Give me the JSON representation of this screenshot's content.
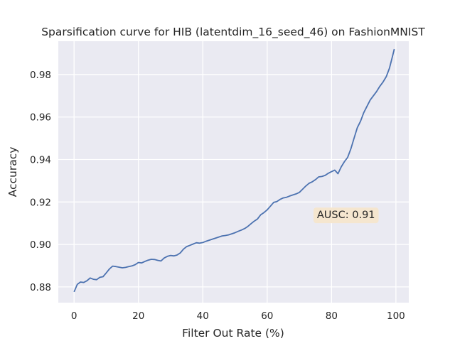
{
  "chart_data": {
    "type": "line",
    "title": "Sparsification curve for HIB (latentdim_16_seed_46) on FashionMNIST",
    "xlabel": "Filter Out Rate (%)",
    "ylabel": "Accuracy",
    "xlim": [
      -4.9,
      104
    ],
    "ylim": [
      0.8726,
      0.9957
    ],
    "xticks": [
      0,
      20,
      40,
      60,
      80,
      100
    ],
    "yticks": [
      0.88,
      0.9,
      0.92,
      0.94,
      0.96,
      0.98
    ],
    "xtick_labels": [
      "0",
      "20",
      "40",
      "60",
      "80",
      "100"
    ],
    "ytick_labels": [
      "0.88",
      "0.90",
      "0.92",
      "0.94",
      "0.96",
      "0.98"
    ],
    "grid": true,
    "annotation": {
      "text": "AUSC: 0.91",
      "x": 84.5,
      "y": 0.9137
    },
    "colors": {
      "line": "#4c72b0",
      "background": "#eaeaf2",
      "grid": "#ffffff",
      "annotation_box": "#f5e6cf"
    },
    "series": [
      {
        "x": [
          0,
          1,
          2,
          3,
          4,
          5,
          6,
          7,
          8,
          9,
          10,
          11,
          12,
          13,
          14,
          15,
          16,
          17,
          18,
          19,
          20,
          21,
          22,
          23,
          24,
          25,
          26,
          27,
          28,
          29,
          30,
          31,
          32,
          33,
          34,
          35,
          36,
          37,
          38,
          39,
          40,
          41,
          42,
          43,
          44,
          45,
          46,
          47,
          48,
          49,
          50,
          51,
          52,
          53,
          54,
          55,
          56,
          57,
          58,
          59,
          60,
          61,
          62,
          63,
          64,
          65,
          66,
          67,
          68,
          69,
          70,
          71,
          72,
          73,
          74,
          75,
          76,
          77,
          78,
          79,
          80,
          81,
          82,
          83,
          84,
          85,
          86,
          87,
          88,
          89,
          90,
          91,
          92,
          93,
          94,
          95,
          96,
          97,
          98,
          99,
          99.5
        ],
        "y": [
          0.8777,
          0.8812,
          0.8823,
          0.8821,
          0.8829,
          0.8842,
          0.8836,
          0.8834,
          0.8845,
          0.8848,
          0.8866,
          0.8885,
          0.8898,
          0.8896,
          0.8893,
          0.889,
          0.8892,
          0.8896,
          0.8899,
          0.8905,
          0.8915,
          0.8913,
          0.892,
          0.8926,
          0.893,
          0.8929,
          0.8925,
          0.8922,
          0.8936,
          0.8944,
          0.8948,
          0.8946,
          0.895,
          0.896,
          0.8978,
          0.899,
          0.8996,
          0.9002,
          0.9008,
          0.9006,
          0.9009,
          0.9015,
          0.902,
          0.9025,
          0.903,
          0.9035,
          0.904,
          0.9042,
          0.9045,
          0.905,
          0.9055,
          0.9062,
          0.9068,
          0.9075,
          0.9085,
          0.9098,
          0.911,
          0.912,
          0.914,
          0.915,
          0.9163,
          0.918,
          0.9198,
          0.9202,
          0.9212,
          0.9219,
          0.9222,
          0.9228,
          0.9233,
          0.9238,
          0.9245,
          0.926,
          0.9275,
          0.9288,
          0.9295,
          0.9305,
          0.9318,
          0.932,
          0.9325,
          0.9335,
          0.9343,
          0.935,
          0.9333,
          0.9365,
          0.939,
          0.941,
          0.945,
          0.95,
          0.955,
          0.958,
          0.962,
          0.965,
          0.968,
          0.97,
          0.972,
          0.9745,
          0.9765,
          0.979,
          0.983,
          0.989,
          0.992
        ]
      }
    ]
  }
}
